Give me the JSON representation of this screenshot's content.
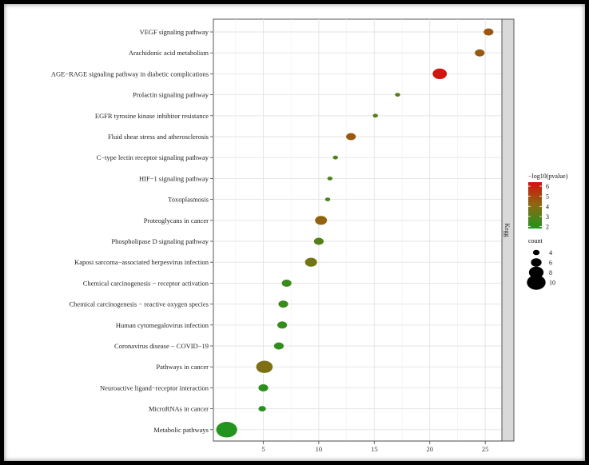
{
  "chart_data": {
    "type": "scatter",
    "title": "",
    "xlabel": "",
    "ylabel": "",
    "xlim": [
      0.5,
      26.5
    ],
    "x_ticks": [
      5,
      10,
      15,
      20,
      25
    ],
    "facet_label": "Kegg",
    "grid": true,
    "pathways": [
      {
        "name": "VEGF signaling pathway",
        "x": 25.3,
        "logp": 4.6,
        "count": 5
      },
      {
        "name": "Arachidonic acid metabolism",
        "x": 24.5,
        "logp": 4.5,
        "count": 5
      },
      {
        "name": "AGE−RAGE signaling pathway in diabetic complications",
        "x": 20.9,
        "logp": 6.2,
        "count": 7
      },
      {
        "name": "Prolactin signaling pathway",
        "x": 17.1,
        "logp": 3.2,
        "count": 3
      },
      {
        "name": "EGFR tyrosine kinase inhibitor resistance",
        "x": 15.1,
        "logp": 3.0,
        "count": 3
      },
      {
        "name": "Fluid shear stress and atherosclerosis",
        "x": 12.9,
        "logp": 4.5,
        "count": 5
      },
      {
        "name": "C−type lectin receptor signaling pathway",
        "x": 11.5,
        "logp": 2.8,
        "count": 3
      },
      {
        "name": "HIF−1 signaling pathway",
        "x": 11.0,
        "logp": 2.8,
        "count": 3
      },
      {
        "name": "Toxoplasmosis",
        "x": 10.8,
        "logp": 2.7,
        "count": 3
      },
      {
        "name": "Proteoglycans in cancer",
        "x": 10.2,
        "logp": 4.3,
        "count": 6
      },
      {
        "name": "Phospholipase D signaling pathway",
        "x": 10.0,
        "logp": 3.0,
        "count": 5
      },
      {
        "name": "Kaposi sarcoma−associated herpesvirus infection",
        "x": 9.3,
        "logp": 3.6,
        "count": 6
      },
      {
        "name": "Chemical carcinogenesis − receptor activation",
        "x": 7.1,
        "logp": 2.4,
        "count": 5
      },
      {
        "name": "Chemical carcinogenesis − reactive oxygen species",
        "x": 6.8,
        "logp": 2.4,
        "count": 5
      },
      {
        "name": "Human cytomegalovirus infection",
        "x": 6.7,
        "logp": 2.3,
        "count": 5
      },
      {
        "name": "Coronavirus disease − COVID−19",
        "x": 6.4,
        "logp": 2.2,
        "count": 5
      },
      {
        "name": "Pathways in cancer",
        "x": 5.1,
        "logp": 3.8,
        "count": 8
      },
      {
        "name": "Neuroactive ligand−receptor interaction",
        "x": 5.0,
        "logp": 2.1,
        "count": 5
      },
      {
        "name": "MicroRNAs in cancer",
        "x": 4.9,
        "logp": 2.0,
        "count": 4
      },
      {
        "name": "Metabolic pathways",
        "x": 1.7,
        "logp": 1.9,
        "count": 10
      }
    ],
    "color_legend": {
      "title": "−log10(pvalue)",
      "breaks": [
        6,
        5,
        4,
        3,
        2
      ],
      "range": [
        1.8,
        6.4
      ],
      "low_color": "#1e9620",
      "mid_color": "#8a6a10",
      "high_color": "#d60f0f"
    },
    "size_legend": {
      "title": "count",
      "breaks": [
        4,
        6,
        8,
        10
      ]
    }
  }
}
